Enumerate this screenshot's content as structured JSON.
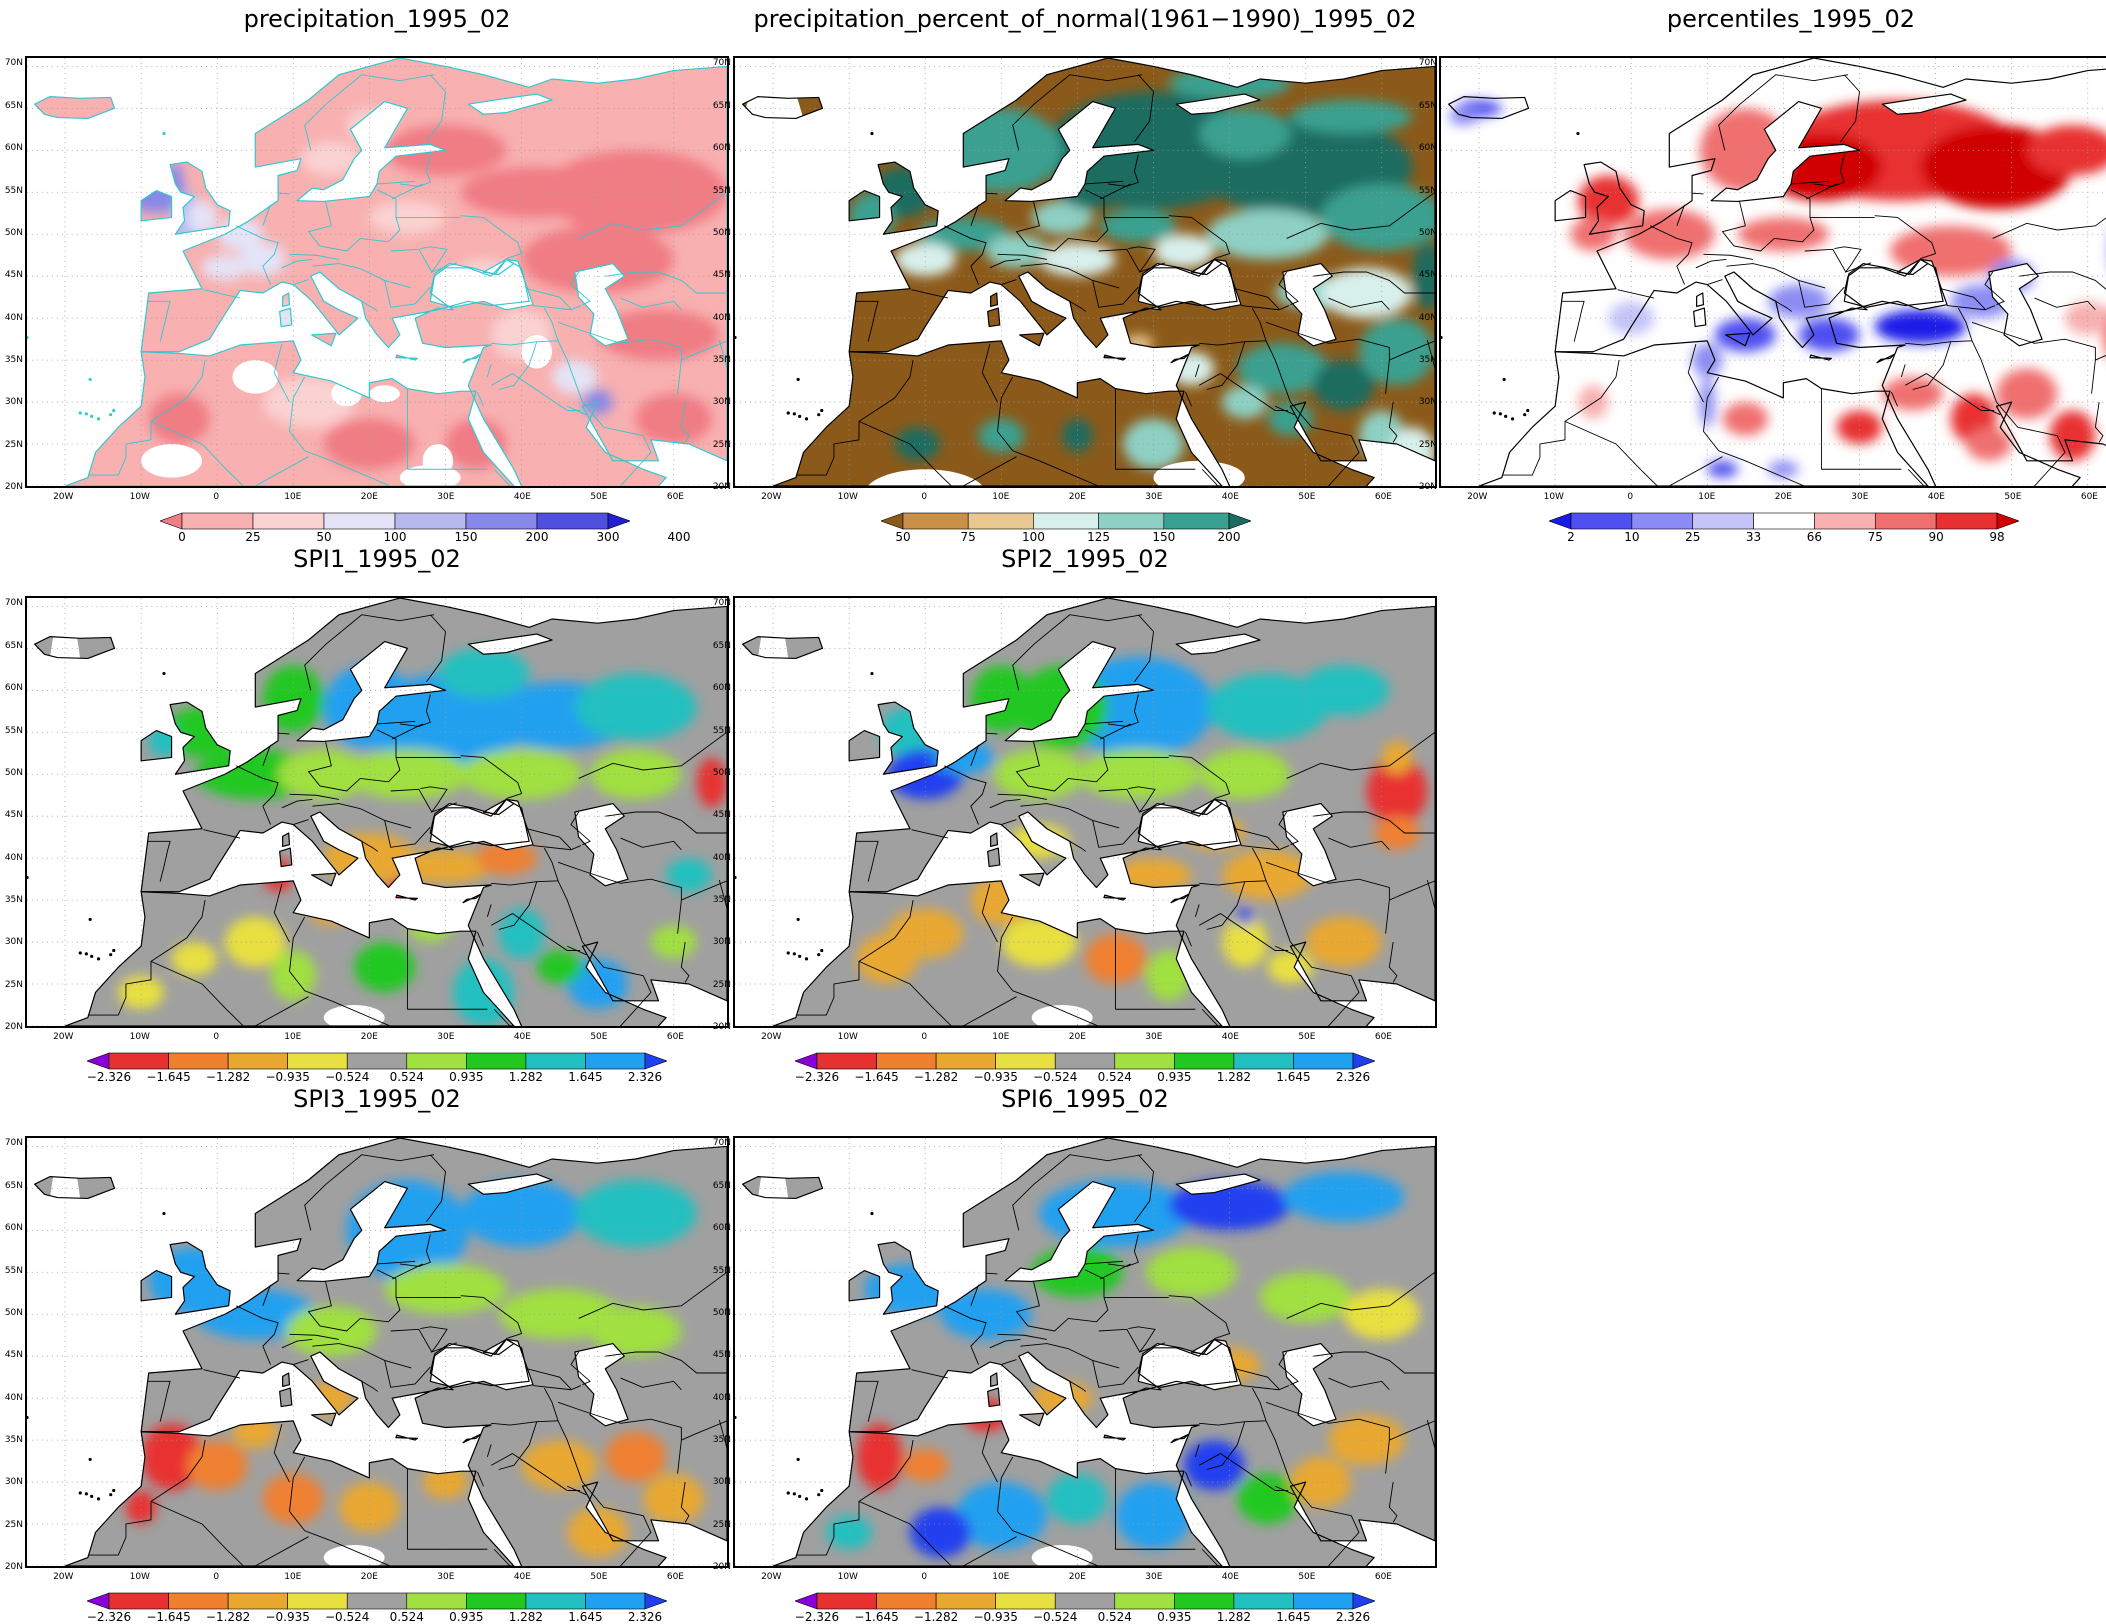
{
  "axes": {
    "lat_labels": [
      "70N",
      "65N",
      "60N",
      "55N",
      "50N",
      "45N",
      "40N",
      "35N",
      "30N",
      "25N",
      "20N"
    ],
    "lon_labels": [
      "20W",
      "10W",
      "0",
      "10E",
      "20E",
      "30E",
      "40E",
      "50E",
      "60E"
    ]
  },
  "panels": [
    {
      "title": "precipitation_1995_02",
      "scheme": "precip",
      "colors": [
        "#f07c84",
        "#f8b0b0",
        "#fbd2d2",
        "#e4e4f8",
        "#b8b8f0",
        "#8888e8",
        "#5050e0",
        "#2020d0"
      ],
      "labels": [
        "0",
        "25",
        "50",
        "100",
        "150",
        "200",
        "300",
        "400"
      ]
    },
    {
      "title": "precipitation_percent_of_normal(1961−1990)_1995_02",
      "scheme": "pct",
      "colors": [
        "#8b5a1a",
        "#c9904a",
        "#e8c890",
        "#d8f0ec",
        "#8ed0c4",
        "#3aa090",
        "#1a6c60"
      ],
      "labels": [
        "50",
        "75",
        "100",
        "125",
        "150",
        "200"
      ]
    },
    {
      "title": "percentiles_1995_02",
      "scheme": "perc",
      "colors": [
        "#1a1ae8",
        "#5050f0",
        "#8c8cf4",
        "#c4c4f8",
        "#ffffff",
        "#f8b0b0",
        "#f07070",
        "#e83030",
        "#d00000"
      ],
      "labels": [
        "2",
        "10",
        "25",
        "33",
        "66",
        "75",
        "90",
        "98"
      ]
    },
    {
      "title": "SPI1_1995_02",
      "scheme": "spi1",
      "colors": [
        "#8a00d8",
        "#e83030",
        "#f08030",
        "#e8a830",
        "#e8e040",
        "#a0a0a0",
        "#a0e040",
        "#20c820",
        "#20c0c0",
        "#20a0f0",
        "#2040f0"
      ],
      "labels": [
        "−2.326",
        "−1.645",
        "−1.282",
        "−0.935",
        "−0.524",
        "0.524",
        "0.935",
        "1.282",
        "1.645",
        "2.326"
      ]
    },
    {
      "title": "SPI2_1995_02",
      "scheme": "spi2",
      "colors": [
        "#8a00d8",
        "#e83030",
        "#f08030",
        "#e8a830",
        "#e8e040",
        "#a0a0a0",
        "#a0e040",
        "#20c820",
        "#20c0c0",
        "#20a0f0",
        "#2040f0"
      ],
      "labels": [
        "−2.326",
        "−1.645",
        "−1.282",
        "−0.935",
        "−0.524",
        "0.524",
        "0.935",
        "1.282",
        "1.645",
        "2.326"
      ]
    },
    {
      "title": "SPI3_1995_02",
      "scheme": "spi3",
      "colors": [
        "#8a00d8",
        "#e83030",
        "#f08030",
        "#e8a830",
        "#e8e040",
        "#a0a0a0",
        "#a0e040",
        "#20c820",
        "#20c0c0",
        "#20a0f0",
        "#2040f0"
      ],
      "labels": [
        "−2.326",
        "−1.645",
        "−1.282",
        "−0.935",
        "−0.524",
        "0.524",
        "0.935",
        "1.282",
        "1.645",
        "2.326"
      ]
    },
    {
      "title": "SPI6_1995_02",
      "scheme": "spi6",
      "colors": [
        "#8a00d8",
        "#e83030",
        "#f08030",
        "#e8a830",
        "#e8e040",
        "#a0a0a0",
        "#a0e040",
        "#20c820",
        "#20c0c0",
        "#20a0f0",
        "#2040f0"
      ],
      "labels": [
        "−2.326",
        "−1.645",
        "−1.282",
        "−0.935",
        "−0.524",
        "0.524",
        "0.935",
        "1.282",
        "1.645",
        "2.326"
      ]
    }
  ]
}
